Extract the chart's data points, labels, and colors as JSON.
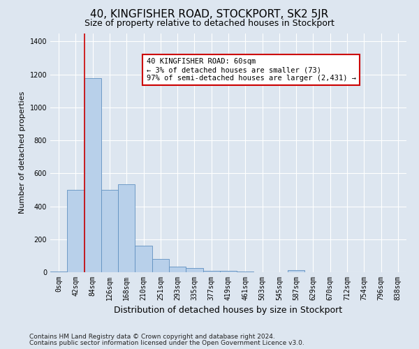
{
  "title": "40, KINGFISHER ROAD, STOCKPORT, SK2 5JR",
  "subtitle": "Size of property relative to detached houses in Stockport",
  "xlabel": "Distribution of detached houses by size in Stockport",
  "ylabel": "Number of detached properties",
  "bar_labels": [
    "0sqm",
    "42sqm",
    "84sqm",
    "126sqm",
    "168sqm",
    "210sqm",
    "251sqm",
    "293sqm",
    "335sqm",
    "377sqm",
    "419sqm",
    "461sqm",
    "503sqm",
    "545sqm",
    "587sqm",
    "629sqm",
    "670sqm",
    "712sqm",
    "754sqm",
    "796sqm",
    "838sqm"
  ],
  "bar_values": [
    5,
    500,
    1175,
    500,
    535,
    160,
    80,
    33,
    25,
    8,
    8,
    3,
    0,
    0,
    12,
    0,
    0,
    0,
    0,
    0,
    0
  ],
  "bar_color": "#b8d0ea",
  "bar_edge_color": "#6090c0",
  "bar_edge_width": 0.6,
  "vline_x": 2.0,
  "vline_color": "#cc0000",
  "vline_lw": 1.2,
  "annotation_text": "40 KINGFISHER ROAD: 60sqm\n← 3% of detached houses are smaller (73)\n97% of semi-detached houses are larger (2,431) →",
  "annotation_box_color": "white",
  "annotation_box_edge": "#cc0000",
  "ylim": [
    0,
    1450
  ],
  "yticks": [
    0,
    200,
    400,
    600,
    800,
    1000,
    1200,
    1400
  ],
  "footnote1": "Contains HM Land Registry data © Crown copyright and database right 2024.",
  "footnote2": "Contains public sector information licensed under the Open Government Licence v3.0.",
  "bg_color": "#dde6f0",
  "plot_bg_color": "#dde6f0",
  "title_fontsize": 11,
  "subtitle_fontsize": 9,
  "axis_label_fontsize": 8,
  "tick_fontsize": 7,
  "footnote_fontsize": 6.5,
  "grid_color": "white",
  "grid_lw": 0.8
}
